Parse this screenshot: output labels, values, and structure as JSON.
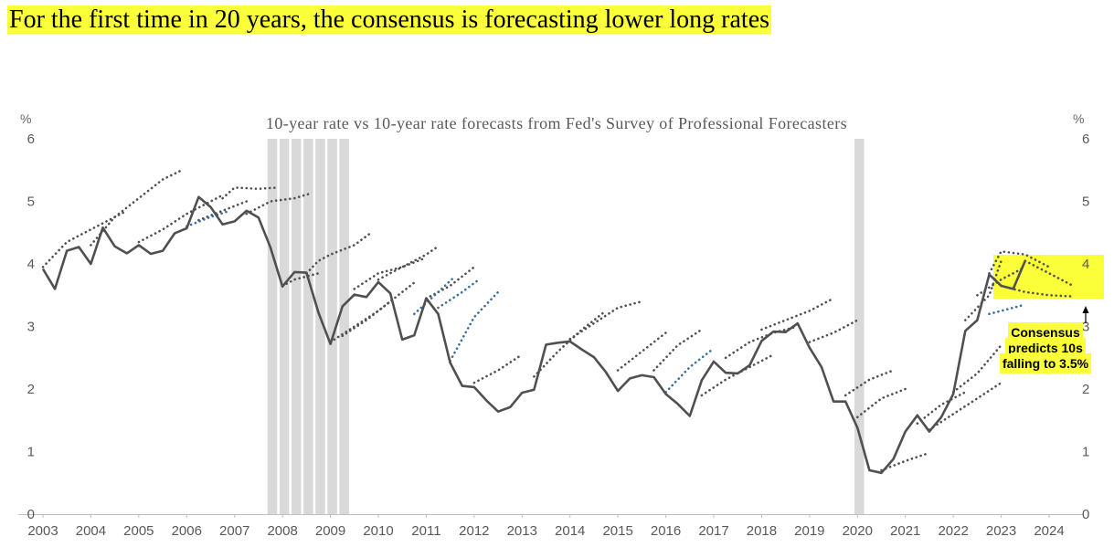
{
  "headline": "For the first time in 20 years, the consensus is forecasting lower long rates",
  "colors": {
    "highlight": "#fbff3a",
    "actual_line": "#505050",
    "forecast_dots": "#505050",
    "forecast_dots_blue": "#3c6e9a",
    "recession": "#d9d9d9"
  },
  "chart_data": {
    "type": "line",
    "title": "10-year rate vs 10-year rate forecasts from Fed's Survey of Professional Forecasters",
    "y_unit_left": "%",
    "y_unit_right": "%",
    "xlim": [
      2003,
      2024.7
    ],
    "ylim": [
      0,
      6
    ],
    "x_ticks": [
      "2003",
      "2004",
      "2005",
      "2006",
      "2007",
      "2008",
      "2009",
      "2010",
      "2011",
      "2012",
      "2013",
      "2014",
      "2015",
      "2016",
      "2017",
      "2018",
      "2019",
      "2020",
      "2021",
      "2022",
      "2023",
      "2024"
    ],
    "y_ticks": [
      "0",
      "1",
      "2",
      "3",
      "4",
      "5",
      "6"
    ],
    "recession_bars": [
      2007.75,
      2008.0,
      2008.25,
      2008.5,
      2008.75,
      2009.0,
      2009.25,
      2020.0
    ],
    "series": [
      {
        "style": "solid",
        "x": [
          2003.0,
          2003.25,
          2003.5,
          2003.75,
          2004.0,
          2004.25,
          2004.5,
          2004.75,
          2005.0,
          2005.25,
          2005.5,
          2005.75,
          2006.0,
          2006.25,
          2006.5,
          2006.75,
          2007.0,
          2007.25,
          2007.5,
          2007.75,
          2008.0,
          2008.25,
          2008.5,
          2008.75,
          2009.0,
          2009.25,
          2009.5,
          2009.75,
          2010.0,
          2010.25,
          2010.5,
          2010.75,
          2011.0,
          2011.25,
          2011.5,
          2011.75,
          2012.0,
          2012.25,
          2012.5,
          2012.75,
          2013.0,
          2013.25,
          2013.5,
          2013.75,
          2014.0,
          2014.25,
          2014.5,
          2014.75,
          2015.0,
          2015.25,
          2015.5,
          2015.75,
          2016.0,
          2016.25,
          2016.5,
          2016.75,
          2017.0,
          2017.25,
          2017.5,
          2017.75,
          2018.0,
          2018.25,
          2018.5,
          2018.75,
          2019.0,
          2019.25,
          2019.5,
          2019.75,
          2020.0,
          2020.25,
          2020.5,
          2020.75,
          2021.0,
          2021.25,
          2021.5,
          2021.75,
          2022.0,
          2022.25,
          2022.5,
          2022.75,
          2023.0,
          2023.25,
          2023.5
        ],
        "y": [
          3.92,
          3.6,
          4.21,
          4.27,
          4.0,
          4.58,
          4.28,
          4.17,
          4.3,
          4.16,
          4.21,
          4.49,
          4.57,
          5.07,
          4.91,
          4.63,
          4.68,
          4.85,
          4.74,
          4.26,
          3.64,
          3.87,
          3.86,
          3.22,
          2.72,
          3.32,
          3.51,
          3.47,
          3.71,
          3.53,
          2.79,
          2.86,
          3.45,
          3.2,
          2.42,
          2.05,
          2.03,
          1.82,
          1.64,
          1.71,
          1.94,
          1.99,
          2.71,
          2.74,
          2.76,
          2.63,
          2.51,
          2.27,
          1.97,
          2.17,
          2.22,
          2.19,
          1.92,
          1.76,
          1.57,
          2.14,
          2.44,
          2.26,
          2.25,
          2.38,
          2.77,
          2.92,
          2.91,
          3.05,
          2.66,
          2.35,
          1.8,
          1.8,
          1.38,
          0.7,
          0.66,
          0.88,
          1.32,
          1.58,
          1.32,
          1.55,
          1.92,
          2.93,
          3.1,
          3.83,
          3.65,
          3.6,
          4.05
        ]
      },
      {
        "style": "dotted",
        "forecasts": [
          {
            "x": [
              2003.0,
              2003.5,
              2004.0,
              2004.75
            ],
            "y": [
              3.95,
              4.35,
              4.55,
              4.85
            ]
          },
          {
            "x": [
              2004.0,
              2004.5,
              2005.0,
              2005.5,
              2005.9
            ],
            "y": [
              4.3,
              4.75,
              5.05,
              5.35,
              5.5
            ]
          },
          {
            "x": [
              2005.0,
              2005.5,
              2006.0,
              2006.5,
              2006.75
            ],
            "y": [
              4.35,
              4.55,
              4.8,
              5.0,
              5.1
            ]
          },
          {
            "x": [
              2006.25,
              2006.75,
              2007.25
            ],
            "y": [
              4.7,
              4.85,
              5.0
            ]
          },
          {
            "x": [
              2006.75,
              2007.0,
              2007.5,
              2007.9
            ],
            "y": [
              5.05,
              5.22,
              5.2,
              5.22
            ]
          },
          {
            "x": [
              2007.25,
              2007.75,
              2008.25,
              2008.6
            ],
            "y": [
              4.8,
              5.0,
              5.05,
              5.13
            ]
          },
          {
            "x": [
              2008.0,
              2008.25,
              2008.5,
              2008.75
            ],
            "y": [
              3.65,
              3.75,
              3.8,
              3.85
            ]
          },
          {
            "x": [
              2008.5,
              2008.75,
              2009.0,
              2009.5,
              2009.85
            ],
            "y": [
              3.85,
              4.05,
              4.15,
              4.3,
              4.5
            ]
          },
          {
            "x": [
              2009.0,
              2009.5,
              2010.0,
              2010.25
            ],
            "y": [
              2.75,
              3.0,
              3.25,
              3.4
            ]
          },
          {
            "x": [
              2009.25,
              2009.75,
              2010.25,
              2010.75
            ],
            "y": [
              2.85,
              3.1,
              3.4,
              3.7
            ]
          },
          {
            "x": [
              2009.5,
              2010.0,
              2010.5,
              2011.0
            ],
            "y": [
              3.6,
              3.85,
              3.95,
              4.1
            ]
          },
          {
            "x": [
              2010.0,
              2010.5,
              2011.0,
              2011.25
            ],
            "y": [
              3.75,
              3.95,
              4.15,
              4.28
            ]
          },
          {
            "x": [
              2011.0,
              2011.5,
              2012.0
            ],
            "y": [
              3.45,
              3.65,
              3.95
            ]
          },
          {
            "x": [
              2012.0,
              2012.5,
              2013.0
            ],
            "y": [
              2.1,
              2.3,
              2.55
            ]
          },
          {
            "x": [
              2013.25,
              2013.75,
              2014.25,
              2014.75
            ],
            "y": [
              2.2,
              2.6,
              2.95,
              3.25
            ]
          },
          {
            "x": [
              2014.0,
              2014.5,
              2015.0,
              2015.5
            ],
            "y": [
              2.8,
              3.05,
              3.3,
              3.4
            ]
          },
          {
            "x": [
              2015.0,
              2015.5,
              2016.0
            ],
            "y": [
              2.3,
              2.6,
              2.9
            ]
          },
          {
            "x": [
              2015.75,
              2016.25,
              2016.75
            ],
            "y": [
              2.3,
              2.7,
              2.95
            ]
          },
          {
            "x": [
              2016.75,
              2017.25,
              2017.75,
              2018.25
            ],
            "y": [
              1.9,
              2.15,
              2.35,
              2.55
            ]
          },
          {
            "x": [
              2017.25,
              2017.75,
              2018.25,
              2018.75
            ],
            "y": [
              2.5,
              2.75,
              2.9,
              3.0
            ]
          },
          {
            "x": [
              2018.0,
              2018.5,
              2019.0,
              2019.5
            ],
            "y": [
              2.95,
              3.1,
              3.25,
              3.45
            ]
          },
          {
            "x": [
              2019.0,
              2019.5,
              2020.0
            ],
            "y": [
              2.75,
              2.9,
              3.1
            ]
          },
          {
            "x": [
              2019.75,
              2020.25,
              2020.75
            ],
            "y": [
              1.9,
              2.15,
              2.3
            ]
          },
          {
            "x": [
              2020.0,
              2020.5,
              2021.0
            ],
            "y": [
              1.55,
              1.85,
              2.0
            ]
          },
          {
            "x": [
              2020.5,
              2021.0,
              2021.5
            ],
            "y": [
              0.7,
              0.85,
              0.98
            ]
          },
          {
            "x": [
              2021.25,
              2021.75,
              2022.25
            ],
            "y": [
              1.45,
              1.75,
              1.95
            ]
          },
          {
            "x": [
              2021.5,
              2022.0,
              2022.5,
              2023.0
            ],
            "y": [
              1.35,
              1.6,
              1.85,
              2.1
            ]
          },
          {
            "x": [
              2022.0,
              2022.5,
              2023.0
            ],
            "y": [
              1.95,
              2.25,
              2.7
            ]
          },
          {
            "x": [
              2022.25,
              2022.75,
              2023.0
            ],
            "y": [
              3.1,
              3.5,
              4.05
            ]
          },
          {
            "x": [
              2022.5,
              2023.0,
              2023.5
            ],
            "y": [
              3.5,
              3.75,
              3.95
            ]
          },
          {
            "x": [
              2022.75,
              2023.0,
              2023.5,
              2024.0
            ],
            "y": [
              3.85,
              4.2,
              4.15,
              3.95
            ]
          },
          {
            "x": [
              2023.0,
              2023.5,
              2024.0,
              2024.5
            ],
            "y": [
              3.65,
              3.55,
              3.5,
              3.48
            ]
          },
          {
            "x": [
              2023.5,
              2024.0,
              2024.5
            ],
            "y": [
              4.05,
              3.85,
              3.65
            ]
          }
        ],
        "forecasts_blue": [
          {
            "x": [
              2006.0,
              2006.5,
              2006.9
            ],
            "y": [
              4.6,
              4.75,
              4.85
            ]
          },
          {
            "x": [
              2010.75,
              2011.25,
              2011.6
            ],
            "y": [
              3.2,
              3.55,
              3.8
            ]
          },
          {
            "x": [
              2011.25,
              2011.75,
              2012.1
            ],
            "y": [
              3.3,
              3.55,
              3.75
            ]
          },
          {
            "x": [
              2011.5,
              2012.0,
              2012.5
            ],
            "y": [
              2.45,
              3.15,
              3.55
            ]
          },
          {
            "x": [
              2016.0,
              2016.5,
              2017.0
            ],
            "y": [
              1.95,
              2.35,
              2.65
            ]
          },
          {
            "x": [
              2022.75,
              2023.25,
              2023.5
            ],
            "y": [
              3.2,
              3.3,
              3.35
            ]
          }
        ]
      }
    ],
    "annotation": "Consensus predicts 10s falling to 3.5%",
    "annotation_lines": [
      "Consensus",
      "predicts 10s",
      "falling to 3.5%"
    ]
  }
}
